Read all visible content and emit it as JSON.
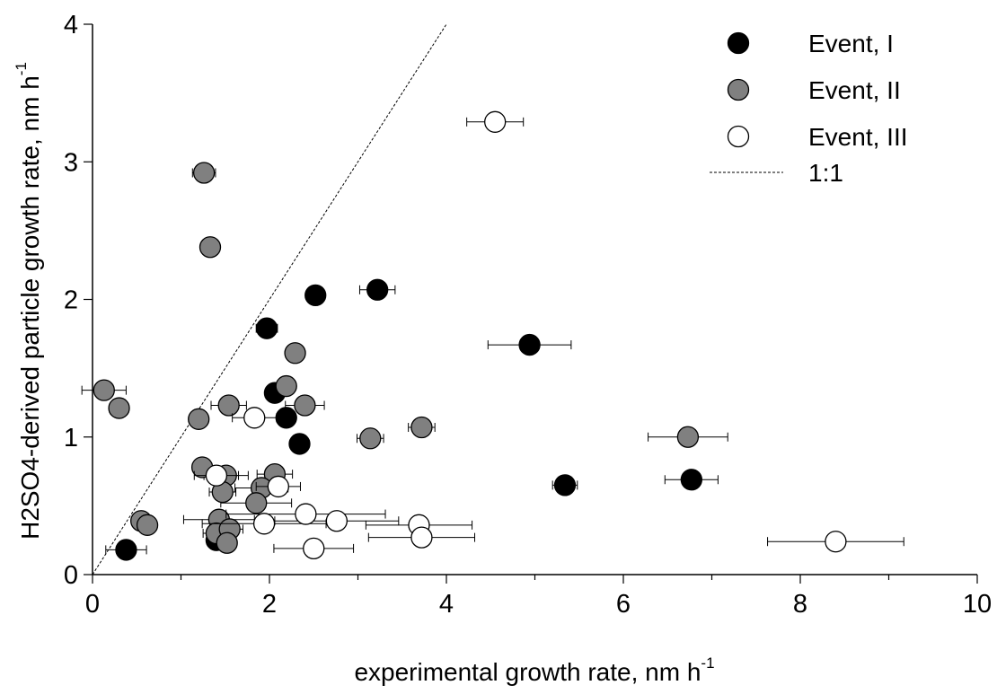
{
  "chart_data": {
    "type": "scatter",
    "xlabel": [
      "experimental growth rate, nm h",
      "-1"
    ],
    "ylabel": [
      "H2SO4-derived particle growth rate, nm h",
      "-1"
    ],
    "xlim": [
      0,
      10
    ],
    "ylim": [
      0,
      4
    ],
    "xticks": [
      0,
      2,
      4,
      6,
      8,
      10
    ],
    "xminor_ticks": [
      1,
      3,
      5,
      7,
      9
    ],
    "yticks": [
      0,
      1,
      2,
      3,
      4
    ],
    "legend": "upper right",
    "reference_line": {
      "name": "1:1",
      "slope": 1,
      "color": "#000000"
    },
    "series": [
      {
        "name": "Event, I",
        "color": "#000000",
        "x": [
          0.38,
          1.97,
          2.52,
          3.22,
          4.94,
          2.06,
          2.19,
          2.34,
          5.34,
          6.77,
          1.4
        ],
        "values": [
          0.18,
          1.79,
          2.03,
          2.07,
          1.67,
          1.32,
          1.14,
          0.95,
          0.65,
          0.69,
          0.25
        ],
        "xerr": [
          0.23,
          0.12,
          0.05,
          0.2,
          0.47,
          0.08,
          0.1,
          0.08,
          0.14,
          0.3,
          0.1
        ]
      },
      {
        "name": "Event, II",
        "color": "#808080",
        "x": [
          0.13,
          0.3,
          1.26,
          1.33,
          1.2,
          1.54,
          2.19,
          2.29,
          2.4,
          3.14,
          3.72,
          6.73,
          1.24,
          1.51,
          1.47,
          2.06,
          1.91,
          1.85,
          0.55,
          0.62,
          1.43,
          1.4,
          1.55,
          1.52
        ],
        "values": [
          1.34,
          1.21,
          2.92,
          2.38,
          1.13,
          1.23,
          1.37,
          1.61,
          1.23,
          0.99,
          1.07,
          1.0,
          0.78,
          0.72,
          0.6,
          0.73,
          0.63,
          0.52,
          0.39,
          0.36,
          0.4,
          0.3,
          0.33,
          0.23
        ],
        "xerr": [
          0.25,
          0.1,
          0.13,
          0.1,
          0.1,
          0.2,
          0.1,
          0.05,
          0.22,
          0.15,
          0.15,
          0.45,
          0.1,
          0.25,
          0.15,
          0.2,
          0.3,
          0.4,
          0.08,
          0.1,
          0.4,
          0.15,
          0.15,
          0.1
        ]
      },
      {
        "name": "Event, III",
        "color": "#ffffff",
        "x": [
          4.55,
          1.83,
          1.4,
          2.1,
          1.94,
          2.41,
          2.76,
          3.69,
          3.72,
          2.5,
          8.4
        ],
        "values": [
          3.29,
          1.14,
          0.72,
          0.64,
          0.37,
          0.44,
          0.39,
          0.36,
          0.27,
          0.19,
          0.24
        ],
        "xerr": [
          0.32,
          0.25,
          0.25,
          0.25,
          0.7,
          0.9,
          0.7,
          0.6,
          0.6,
          0.45,
          0.77
        ]
      }
    ]
  }
}
